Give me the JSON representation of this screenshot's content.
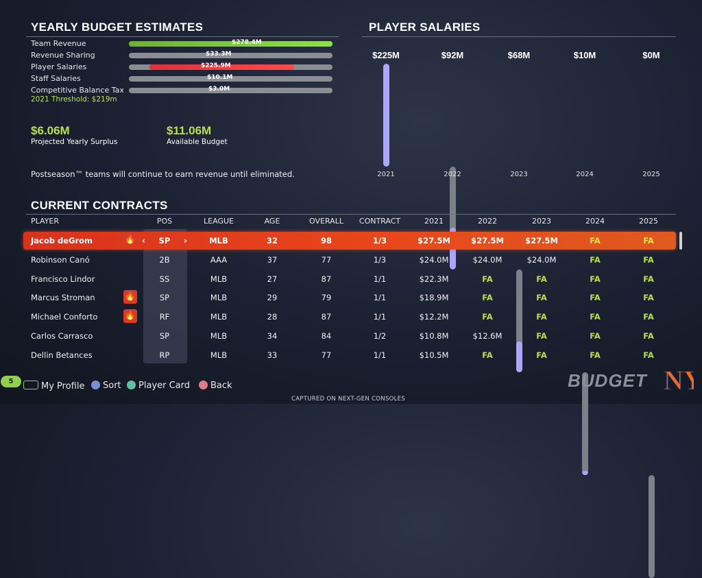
{
  "budget": {
    "title": "YEARLY BUDGET ESTIMATES",
    "rows": [
      {
        "label": "Team Revenue",
        "value": "$278.4M",
        "fraction": 1.0,
        "color": "#8ee04a"
      },
      {
        "label": "Revenue Sharing",
        "value": "$33.3M",
        "fraction": 0.0,
        "color": "#8a8d92"
      },
      {
        "label": "Player Salaries",
        "value": "$225.9M",
        "fraction": 0.81,
        "color": "#e0303a"
      },
      {
        "label": "Staff Salaries",
        "value": "$10.1M",
        "fraction": 0.0,
        "color": "#8a8d92"
      },
      {
        "label": "Competitive Balance Tax",
        "value": "$3.0M",
        "fraction": 0.0,
        "color": "#8a8d92"
      }
    ],
    "threshold": "2021 Threshold: $219m",
    "surplus_value": "$6.06M",
    "surplus_label": "Projected Yearly Surplus",
    "available_value": "$11.06M",
    "available_label": "Available Budget",
    "note": "Postseason™ teams will continue to earn revenue until eliminated."
  },
  "salaries": {
    "title": "PLAYER SALARIES",
    "years": [
      {
        "value": "$225M",
        "year": "2021",
        "fraction": 1.0
      },
      {
        "value": "$92M",
        "year": "2022",
        "fraction": 0.41
      },
      {
        "value": "$68M",
        "year": "2023",
        "fraction": 0.3
      },
      {
        "value": "$10M",
        "year": "2024",
        "fraction": 0.04
      },
      {
        "value": "$0M",
        "year": "2025",
        "fraction": 0.0
      }
    ]
  },
  "contracts": {
    "title": "CURRENT CONTRACTS",
    "headers": [
      "PLAYER",
      "POS",
      "LEAGUE",
      "AGE",
      "OVERALL",
      "CONTRACT",
      "2021",
      "2022",
      "2023",
      "2024",
      "2025"
    ],
    "rows": [
      {
        "player": "Jacob deGrom",
        "hot": true,
        "pos": "SP",
        "league": "MLB",
        "age": "32",
        "overall": "98",
        "contract": "1/3",
        "y2021": "$27.5M",
        "y2022": "$27.5M",
        "y2023": "$27.5M",
        "y2024": "FA",
        "y2025": "FA"
      },
      {
        "player": "Robinson Canó",
        "hot": false,
        "pos": "2B",
        "league": "AAA",
        "age": "37",
        "overall": "77",
        "contract": "1/3",
        "y2021": "$24.0M",
        "y2022": "$24.0M",
        "y2023": "$24.0M",
        "y2024": "FA",
        "y2025": "FA"
      },
      {
        "player": "Francisco Lindor",
        "hot": false,
        "pos": "SS",
        "league": "MLB",
        "age": "27",
        "overall": "87",
        "contract": "1/1",
        "y2021": "$22.3M",
        "y2022": "FA",
        "y2023": "FA",
        "y2024": "FA",
        "y2025": "FA"
      },
      {
        "player": "Marcus Stroman",
        "hot": true,
        "pos": "SP",
        "league": "MLB",
        "age": "29",
        "overall": "79",
        "contract": "1/1",
        "y2021": "$18.9M",
        "y2022": "FA",
        "y2023": "FA",
        "y2024": "FA",
        "y2025": "FA"
      },
      {
        "player": "Michael Conforto",
        "hot": true,
        "pos": "RF",
        "league": "MLB",
        "age": "28",
        "overall": "87",
        "contract": "1/1",
        "y2021": "$12.2M",
        "y2022": "FA",
        "y2023": "FA",
        "y2024": "FA",
        "y2025": "FA"
      },
      {
        "player": "Carlos Carrasco",
        "hot": false,
        "pos": "SP",
        "league": "MLB",
        "age": "34",
        "overall": "84",
        "contract": "1/2",
        "y2021": "$10.8M",
        "y2022": "$12.6M",
        "y2023": "FA",
        "y2024": "FA",
        "y2025": "FA"
      },
      {
        "player": "Dellin Betances",
        "hot": false,
        "pos": "RP",
        "league": "MLB",
        "age": "33",
        "overall": "77",
        "contract": "1/1",
        "y2021": "$10.5M",
        "y2022": "FA",
        "y2023": "FA",
        "y2024": "FA",
        "y2025": "FA"
      }
    ]
  },
  "footer": {
    "badge": "5",
    "my_profile": "My Profile",
    "sort": "Sort",
    "player_card": "Player Card",
    "back": "Back",
    "screen_logo": "BUDGET",
    "team_logo": "NY",
    "captured": "CAPTURED ON NEXT-GEN CONSOLES"
  },
  "colors": {
    "accent_green": "#b8e04a",
    "selected_row": "#e0401c",
    "salary_bar": "#a9a6ff"
  }
}
